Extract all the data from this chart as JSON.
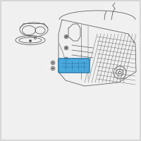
{
  "bg_color": "#f0f0f0",
  "border_color": "#bbbbbb",
  "line_color": "#555555",
  "highlight_color": "#3a9fd8",
  "highlight_edge": "#1a6fa0",
  "fig_width": 2.0,
  "fig_height": 2.0,
  "dpi": 100,
  "lw": 0.55
}
